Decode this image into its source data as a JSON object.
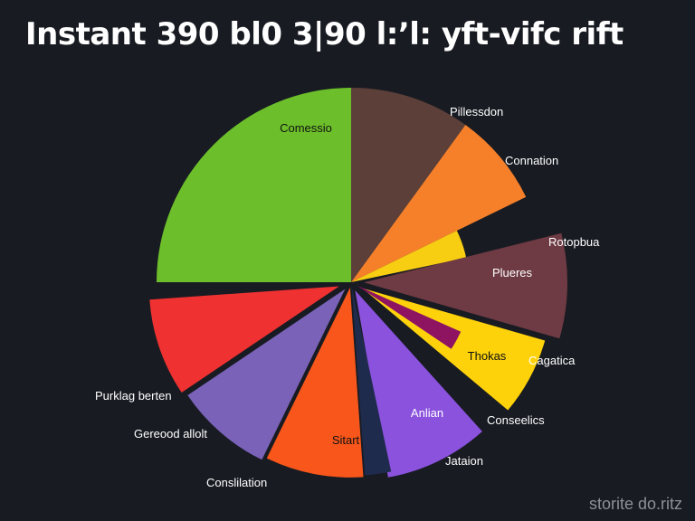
{
  "title": "Instant 390 bl0 3|90 l:’l: yft-vifc rift",
  "watermark": "storite do.ritz",
  "chart_data": {
    "type": "pie",
    "title": "Instant 390 bl0 3|90 l:’l: yft-vifc rift",
    "slices": [
      {
        "key": "green",
        "inner_label": "Comessio",
        "outer_label": "",
        "value": 26,
        "color": "#6cbf2a"
      },
      {
        "key": "brown",
        "inner_label": "",
        "outer_label": "Pillessdon",
        "value": 9,
        "color": "#5b3f38"
      },
      {
        "key": "orange",
        "inner_label": "",
        "outer_label": "Connation",
        "value": 8,
        "color": "#f6802a"
      },
      {
        "key": "yellow-small",
        "inner_label": "",
        "outer_label": "",
        "value": 3,
        "color": "#f8ce12"
      },
      {
        "key": "plum",
        "inner_label": "Plueres",
        "outer_label": "Rotopbua",
        "value": 9,
        "color": "#6e3a43"
      },
      {
        "key": "yellow",
        "inner_label": "Thokas",
        "outer_label": "Cagatica",
        "value": 8,
        "color": "#fdd20b"
      },
      {
        "key": "magenta",
        "inner_label": "",
        "outer_label": "",
        "value": 3,
        "color": "#8e1462"
      },
      {
        "key": "purple",
        "inner_label": "Anlian",
        "outer_label": "Conseelics",
        "value": 8,
        "color": "#8a52dd"
      },
      {
        "key": "navy",
        "inner_label": "",
        "outer_label": "Jataion",
        "value": 2,
        "color": "#1f2b4d"
      },
      {
        "key": "orange-red",
        "inner_label": "Sitart",
        "outer_label": "",
        "value": 10,
        "color": "#f8561b"
      },
      {
        "key": "lavender",
        "inner_label": "",
        "outer_label": "Conslilation",
        "value": 8,
        "color": "#7a62b8"
      },
      {
        "key": "red",
        "inner_label": "",
        "outer_label": "Gereood allolt",
        "value": 9,
        "color": "#ef3131"
      },
      {
        "key": "red-extra",
        "inner_label": "",
        "outer_label": "Purklag berten",
        "value": 0,
        "color": "#ef3131"
      }
    ],
    "legend": "none",
    "label_colors": {
      "inner": "#111111",
      "inner_dark": "#ffffff",
      "outer": "#ffffff"
    }
  }
}
